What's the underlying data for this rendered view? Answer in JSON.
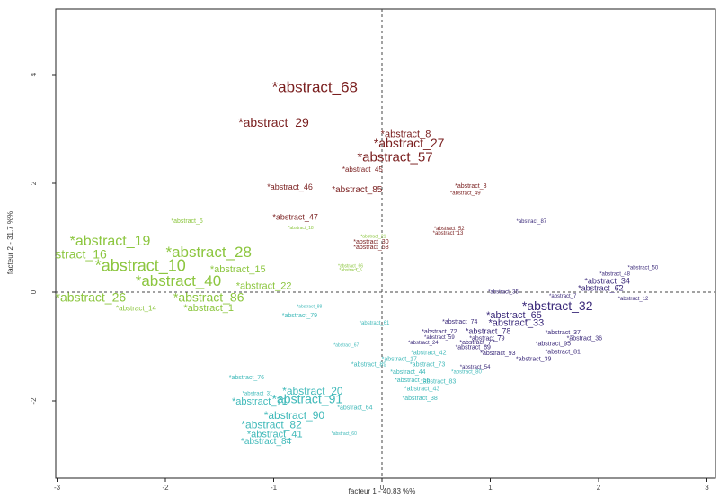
{
  "chart_data": {
    "type": "scatter",
    "xlabel": "facteur 1 - 40.83 %%",
    "ylabel": "facteur 2 - 31.7 %%",
    "xlim": [
      -3,
      3
    ],
    "ylim": [
      -2.9,
      5.2
    ],
    "x_ticks": [
      "-3",
      "-2",
      "-1",
      "0",
      "1",
      "2",
      "3"
    ],
    "y_ticks": [
      "-2",
      "0",
      "2",
      "4"
    ],
    "grid": false,
    "reference_lines": {
      "x": 0,
      "y": 0,
      "style": "dashed"
    },
    "series_colors": {
      "red": "#7a1f1f",
      "green": "#8cc63f",
      "teal": "#3fb9b9",
      "purple": "#3b2a7a"
    },
    "points": [
      {
        "label": "*abstract_68",
        "x": -0.62,
        "y": 3.75,
        "size": 17,
        "series": "red"
      },
      {
        "label": "*abstract_29",
        "x": -1.0,
        "y": 3.1,
        "size": 14,
        "series": "red"
      },
      {
        "label": "*abstract_8",
        "x": 0.22,
        "y": 2.9,
        "size": 11,
        "series": "red"
      },
      {
        "label": "*abstract_27",
        "x": 0.25,
        "y": 2.72,
        "size": 14,
        "series": "red"
      },
      {
        "label": "*abstract_57",
        "x": 0.12,
        "y": 2.47,
        "size": 15,
        "series": "red"
      },
      {
        "label": "*abstract_45",
        "x": -0.18,
        "y": 2.25,
        "size": 8,
        "series": "red"
      },
      {
        "label": "*abstract_46",
        "x": -0.85,
        "y": 1.92,
        "size": 9,
        "series": "red"
      },
      {
        "label": "*abstract_85",
        "x": -0.23,
        "y": 1.88,
        "size": 10,
        "series": "red"
      },
      {
        "label": "*abstract_3",
        "x": 0.82,
        "y": 1.95,
        "size": 7,
        "series": "red"
      },
      {
        "label": "*abstract_49",
        "x": 0.77,
        "y": 1.82,
        "size": 6,
        "series": "red"
      },
      {
        "label": "*abstract_47",
        "x": -0.8,
        "y": 1.37,
        "size": 9,
        "series": "red"
      },
      {
        "label": "*abstract_52",
        "x": 0.62,
        "y": 1.17,
        "size": 6,
        "series": "red"
      },
      {
        "label": "*abstract_13",
        "x": 0.61,
        "y": 1.08,
        "size": 6,
        "series": "red"
      },
      {
        "label": "*abstract_30",
        "x": -0.1,
        "y": 0.92,
        "size": 7,
        "series": "red"
      },
      {
        "label": "*abstract_58",
        "x": -0.1,
        "y": 0.82,
        "size": 7,
        "series": "red"
      },
      {
        "label": "*abstract_87",
        "x": 1.38,
        "y": 1.3,
        "size": 6,
        "series": "purple"
      },
      {
        "label": "*abstract_6",
        "x": -1.8,
        "y": 1.3,
        "size": 7,
        "series": "green"
      },
      {
        "label": "*abstract_18",
        "x": -0.75,
        "y": 1.18,
        "size": 5,
        "series": "green"
      },
      {
        "label": "*abstract_21",
        "x": -0.08,
        "y": 1.02,
        "size": 5,
        "series": "green"
      },
      {
        "label": "*abstract_19",
        "x": -2.51,
        "y": 0.93,
        "size": 16,
        "series": "green"
      },
      {
        "label": "stract_16",
        "x": -2.78,
        "y": 0.68,
        "size": 14,
        "series": "green"
      },
      {
        "label": "*abstract_28",
        "x": -1.6,
        "y": 0.72,
        "size": 17,
        "series": "green"
      },
      {
        "label": "*abstract_10",
        "x": -2.23,
        "y": 0.47,
        "size": 18,
        "series": "green"
      },
      {
        "label": "*abstract_15",
        "x": -1.33,
        "y": 0.41,
        "size": 11,
        "series": "green"
      },
      {
        "label": "*abstract_66",
        "x": -0.29,
        "y": 0.48,
        "size": 5,
        "series": "green"
      },
      {
        "label": "*abstract_5",
        "x": -0.29,
        "y": 0.4,
        "size": 5,
        "series": "green"
      },
      {
        "label": "*abstract_40",
        "x": -1.88,
        "y": 0.19,
        "size": 17,
        "series": "green"
      },
      {
        "label": "*abstract_22",
        "x": -1.09,
        "y": 0.11,
        "size": 11,
        "series": "green"
      },
      {
        "label": "*abstract_26",
        "x": -2.69,
        "y": -0.11,
        "size": 14,
        "series": "green"
      },
      {
        "label": "*abstract_86",
        "x": -1.6,
        "y": -0.11,
        "size": 14,
        "series": "green"
      },
      {
        "label": "*abstract_14",
        "x": -2.27,
        "y": -0.3,
        "size": 8,
        "series": "green"
      },
      {
        "label": "*abstract_1",
        "x": -1.6,
        "y": -0.3,
        "size": 11,
        "series": "green"
      },
      {
        "label": "*abstract_88",
        "x": -0.67,
        "y": -0.27,
        "size": 5,
        "series": "teal"
      },
      {
        "label": "*abstract_79",
        "x": -0.76,
        "y": -0.43,
        "size": 7,
        "series": "teal"
      },
      {
        "label": "*abstract_61",
        "x": -0.07,
        "y": -0.57,
        "size": 6,
        "series": "teal"
      },
      {
        "label": "*abstract_67",
        "x": -0.33,
        "y": -0.98,
        "size": 5,
        "series": "teal"
      },
      {
        "label": "*abstract_89",
        "x": -0.12,
        "y": -1.33,
        "size": 7,
        "series": "teal"
      },
      {
        "label": "*abstract_17",
        "x": 0.16,
        "y": -1.23,
        "size": 7,
        "series": "teal"
      },
      {
        "label": "*abstract_44",
        "x": 0.24,
        "y": -1.47,
        "size": 7,
        "series": "teal"
      },
      {
        "label": "*abstract_73",
        "x": 0.42,
        "y": -1.33,
        "size": 7,
        "series": "teal"
      },
      {
        "label": "*abstract_56",
        "x": 0.28,
        "y": -1.62,
        "size": 7,
        "series": "teal"
      },
      {
        "label": "*abstract_83",
        "x": 0.52,
        "y": -1.65,
        "size": 7,
        "series": "teal"
      },
      {
        "label": "*abstract_43",
        "x": 0.37,
        "y": -1.78,
        "size": 7,
        "series": "teal"
      },
      {
        "label": "*abstract_38",
        "x": 0.35,
        "y": -1.95,
        "size": 7,
        "series": "teal"
      },
      {
        "label": "*abstract_76",
        "x": -1.25,
        "y": -1.57,
        "size": 7,
        "series": "teal"
      },
      {
        "label": "*abstract_31",
        "x": -1.15,
        "y": -1.87,
        "size": 6,
        "series": "teal"
      },
      {
        "label": "*abstract_20",
        "x": -0.64,
        "y": -1.83,
        "size": 12,
        "series": "teal"
      },
      {
        "label": "*abstract_71",
        "x": -1.13,
        "y": -2.02,
        "size": 11,
        "series": "teal"
      },
      {
        "label": "*abstract_91",
        "x": -0.69,
        "y": -1.98,
        "size": 14,
        "series": "teal"
      },
      {
        "label": "*abstract_64",
        "x": -0.25,
        "y": -2.13,
        "size": 7,
        "series": "teal"
      },
      {
        "label": "*abstract_90",
        "x": -0.81,
        "y": -2.28,
        "size": 12,
        "series": "teal"
      },
      {
        "label": "*abstract_82",
        "x": -1.02,
        "y": -2.45,
        "size": 12,
        "series": "teal"
      },
      {
        "label": "*abstract_41",
        "x": -0.99,
        "y": -2.62,
        "size": 11,
        "series": "teal"
      },
      {
        "label": "*abstract_60",
        "x": -0.35,
        "y": -2.61,
        "size": 5,
        "series": "teal"
      },
      {
        "label": "*abstract_84",
        "x": -1.07,
        "y": -2.75,
        "size": 10,
        "series": "teal"
      },
      {
        "label": "*abstract_50",
        "x": 2.41,
        "y": 0.45,
        "size": 6,
        "series": "purple"
      },
      {
        "label": "*abstract_48",
        "x": 2.15,
        "y": 0.33,
        "size": 6,
        "series": "purple"
      },
      {
        "label": "*abstract_34",
        "x": 2.08,
        "y": 0.2,
        "size": 9,
        "series": "purple"
      },
      {
        "label": "*abstract_62",
        "x": 2.02,
        "y": 0.06,
        "size": 9,
        "series": "purple"
      },
      {
        "label": "*abstract_35",
        "x": 1.12,
        "y": 0.0,
        "size": 6,
        "series": "purple"
      },
      {
        "label": "*abstract_7",
        "x": 1.67,
        "y": -0.07,
        "size": 6,
        "series": "purple"
      },
      {
        "label": "*abstract_12",
        "x": 2.32,
        "y": -0.12,
        "size": 6,
        "series": "purple"
      },
      {
        "label": "*abstract_32",
        "x": 1.62,
        "y": -0.27,
        "size": 14,
        "series": "purple"
      },
      {
        "label": "*abstract_65",
        "x": 1.22,
        "y": -0.43,
        "size": 11,
        "series": "purple"
      },
      {
        "label": "*abstract_74",
        "x": 0.72,
        "y": -0.55,
        "size": 7,
        "series": "purple"
      },
      {
        "label": "*abstract_33",
        "x": 1.24,
        "y": -0.57,
        "size": 11,
        "series": "purple"
      },
      {
        "label": "*abstract_72",
        "x": 0.53,
        "y": -0.73,
        "size": 7,
        "series": "purple"
      },
      {
        "label": "*abstract_78",
        "x": 0.98,
        "y": -0.73,
        "size": 9,
        "series": "purple"
      },
      {
        "label": "*abstract_37",
        "x": 1.67,
        "y": -0.75,
        "size": 7,
        "series": "purple"
      },
      {
        "label": "*abstract_59",
        "x": 0.53,
        "y": -0.83,
        "size": 6,
        "series": "purple"
      },
      {
        "label": "*abstract_79",
        "x": 0.97,
        "y": -0.85,
        "size": 7,
        "series": "purple"
      },
      {
        "label": "*abstract_36",
        "x": 1.87,
        "y": -0.85,
        "size": 7,
        "series": "purple"
      },
      {
        "label": "*abstract_24",
        "x": 0.38,
        "y": -0.93,
        "size": 6,
        "series": "purple"
      },
      {
        "label": "*abstract_77",
        "x": 0.88,
        "y": -0.93,
        "size": 7,
        "series": "purple"
      },
      {
        "label": "*abstract_95",
        "x": 1.58,
        "y": -0.95,
        "size": 7,
        "series": "purple"
      },
      {
        "label": "*abstract_69",
        "x": 0.84,
        "y": -1.02,
        "size": 7,
        "series": "purple"
      },
      {
        "label": "*abstract_93",
        "x": 1.07,
        "y": -1.13,
        "size": 7,
        "series": "purple"
      },
      {
        "label": "*abstract_81",
        "x": 1.67,
        "y": -1.1,
        "size": 7,
        "series": "purple"
      },
      {
        "label": "*abstract_39",
        "x": 1.4,
        "y": -1.23,
        "size": 7,
        "series": "purple"
      },
      {
        "label": "*abstract_42",
        "x": 0.43,
        "y": -1.12,
        "size": 7,
        "series": "teal"
      },
      {
        "label": "*abstract_54",
        "x": 0.86,
        "y": -1.38,
        "size": 6,
        "series": "purple"
      },
      {
        "label": "*abstract_80",
        "x": 0.78,
        "y": -1.47,
        "size": 6,
        "series": "teal"
      }
    ]
  }
}
